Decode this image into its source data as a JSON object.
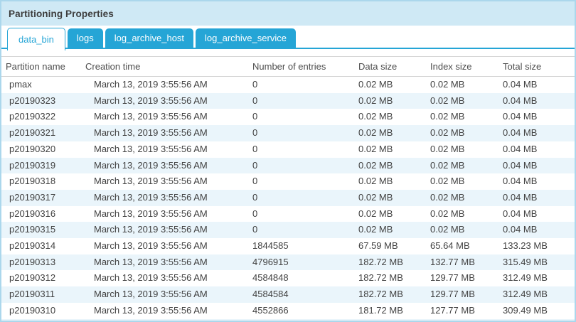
{
  "panel": {
    "title": "Partitioning Properties"
  },
  "tabs": [
    {
      "label": "data_bin",
      "active": true
    },
    {
      "label": "logs",
      "active": false
    },
    {
      "label": "log_archive_host",
      "active": false
    },
    {
      "label": "log_archive_service",
      "active": false
    }
  ],
  "table": {
    "columns": [
      "Partition name",
      "Creation time",
      "Number of entries",
      "Data size",
      "Index size",
      "Total size"
    ],
    "rows": [
      [
        "pmax",
        "March 13, 2019 3:55:56 AM",
        "0",
        "0.02 MB",
        "0.02 MB",
        "0.04 MB"
      ],
      [
        "p20190323",
        "March 13, 2019 3:55:56 AM",
        "0",
        "0.02 MB",
        "0.02 MB",
        "0.04 MB"
      ],
      [
        "p20190322",
        "March 13, 2019 3:55:56 AM",
        "0",
        "0.02 MB",
        "0.02 MB",
        "0.04 MB"
      ],
      [
        "p20190321",
        "March 13, 2019 3:55:56 AM",
        "0",
        "0.02 MB",
        "0.02 MB",
        "0.04 MB"
      ],
      [
        "p20190320",
        "March 13, 2019 3:55:56 AM",
        "0",
        "0.02 MB",
        "0.02 MB",
        "0.04 MB"
      ],
      [
        "p20190319",
        "March 13, 2019 3:55:56 AM",
        "0",
        "0.02 MB",
        "0.02 MB",
        "0.04 MB"
      ],
      [
        "p20190318",
        "March 13, 2019 3:55:56 AM",
        "0",
        "0.02 MB",
        "0.02 MB",
        "0.04 MB"
      ],
      [
        "p20190317",
        "March 13, 2019 3:55:56 AM",
        "0",
        "0.02 MB",
        "0.02 MB",
        "0.04 MB"
      ],
      [
        "p20190316",
        "March 13, 2019 3:55:56 AM",
        "0",
        "0.02 MB",
        "0.02 MB",
        "0.04 MB"
      ],
      [
        "p20190315",
        "March 13, 2019 3:55:56 AM",
        "0",
        "0.02 MB",
        "0.02 MB",
        "0.04 MB"
      ],
      [
        "p20190314",
        "March 13, 2019 3:55:56 AM",
        "1844585",
        "67.59 MB",
        "65.64 MB",
        "133.23 MB"
      ],
      [
        "p20190313",
        "March 13, 2019 3:55:56 AM",
        "4796915",
        "182.72 MB",
        "132.77 MB",
        "315.49 MB"
      ],
      [
        "p20190312",
        "March 13, 2019 3:55:56 AM",
        "4584848",
        "182.72 MB",
        "129.77 MB",
        "312.49 MB"
      ],
      [
        "p20190311",
        "March 13, 2019 3:55:56 AM",
        "4584584",
        "182.72 MB",
        "129.77 MB",
        "312.49 MB"
      ],
      [
        "p20190310",
        "March 13, 2019 3:55:56 AM",
        "4552866",
        "181.72 MB",
        "127.77 MB",
        "309.49 MB"
      ]
    ]
  },
  "colors": {
    "tab_blue": "#25a5d6",
    "title_bar_bg": "#cfe9f5",
    "panel_border": "#abd7ec",
    "row_alt_bg": "#eaf5fb"
  }
}
